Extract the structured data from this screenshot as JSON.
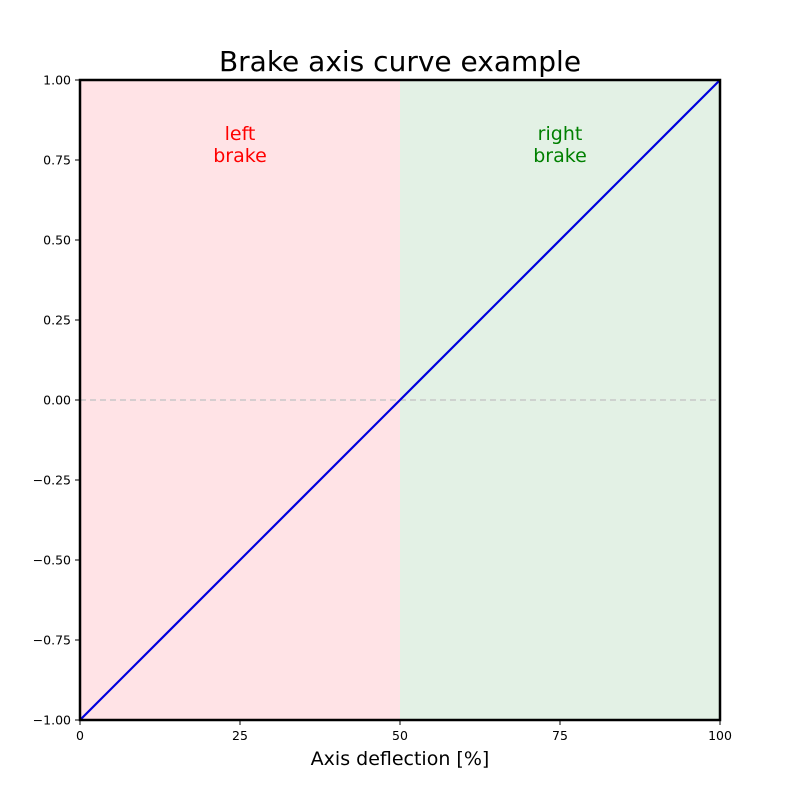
{
  "chart_data": {
    "type": "line",
    "title": "Brake axis curve example",
    "xlabel": "Axis deflection [%]",
    "ylabel": "",
    "xlim": [
      0,
      100
    ],
    "ylim": [
      -1,
      1
    ],
    "xticks": [
      0,
      25,
      50,
      75,
      100
    ],
    "xtick_labels": [
      "0",
      "25",
      "50",
      "75",
      "100"
    ],
    "yticks": [
      -1,
      -0.75,
      -0.5,
      -0.25,
      0,
      0.25,
      0.5,
      0.75,
      1
    ],
    "ytick_labels": [
      "−1.00",
      "−0.75",
      "−0.50",
      "−0.25",
      "0.00",
      "0.25",
      "0.50",
      "0.75",
      "1.00"
    ],
    "grid": false,
    "reference_line": {
      "y": 0,
      "style": "dashed",
      "color": "#c8c8c8"
    },
    "series": [
      {
        "x": [
          0,
          100
        ],
        "y": [
          -1,
          1
        ],
        "color": "#0000dd"
      }
    ],
    "regions": [
      {
        "x_range": [
          0,
          50
        ],
        "color": "#ffe3e6",
        "label_lines": [
          "left",
          "brake"
        ],
        "label_color": "#ff0000",
        "label_x": 25,
        "label_y": 0.8
      },
      {
        "x_range": [
          50,
          100
        ],
        "color": "#e3f1e5",
        "label_lines": [
          "right",
          "brake"
        ],
        "label_color": "#008000",
        "label_x": 75,
        "label_y": 0.8
      }
    ]
  }
}
